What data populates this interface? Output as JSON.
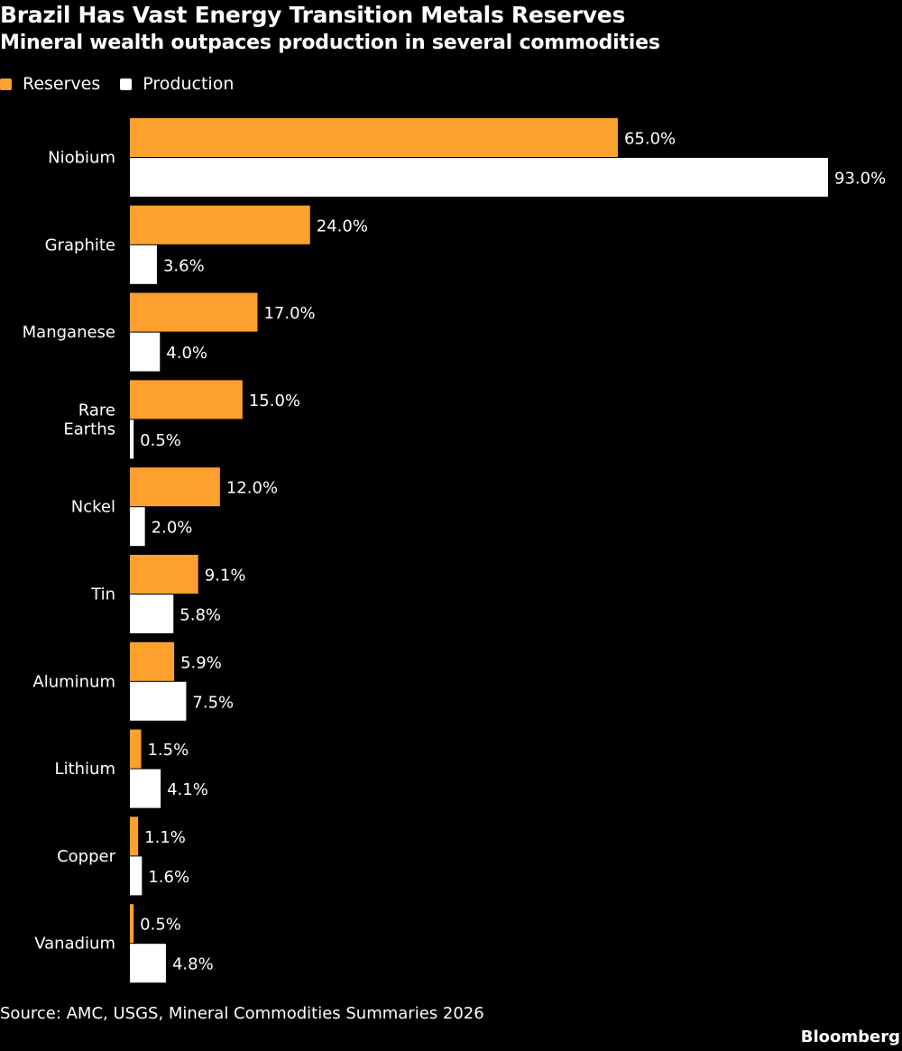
{
  "chart_data": {
    "type": "bar",
    "orientation": "horizontal",
    "title": "Brazil Has Vast Energy Transition Metals Reserves",
    "subtitle": "Mineral wealth outpaces production in several commodities",
    "categories": [
      "Niobium",
      "Graphite",
      "Manganese",
      "Rare Earths",
      "Nckel",
      "Tin",
      "Aluminum",
      "Lithium",
      "Copper",
      "Vanadium"
    ],
    "series": [
      {
        "name": "Reserves",
        "color": "#fca12e",
        "values": [
          65.0,
          24.0,
          17.0,
          15.0,
          12.0,
          9.1,
          5.9,
          1.5,
          1.1,
          0.5
        ],
        "labels": [
          "65.0%",
          "24.0%",
          "17.0%",
          "15.0%",
          "12.0%",
          "9.1%",
          "5.9%",
          "1.5%",
          "1.1%",
          "0.5%"
        ]
      },
      {
        "name": "Production",
        "color": "#ffffff",
        "values": [
          93.0,
          3.6,
          4.0,
          0.5,
          2.0,
          5.8,
          7.5,
          4.1,
          1.6,
          4.8
        ],
        "labels": [
          "93.0%",
          "3.6%",
          "4.0%",
          "0.5%",
          "2.0%",
          "5.8%",
          "7.5%",
          "4.1%",
          "1.6%",
          "4.8%"
        ]
      }
    ],
    "xlim": [
      0,
      93
    ],
    "grid": false,
    "legend_position": "top-left"
  },
  "source": "Source: AMC, USGS, Mineral Commodities Summaries 2026",
  "brand": "Bloomberg"
}
